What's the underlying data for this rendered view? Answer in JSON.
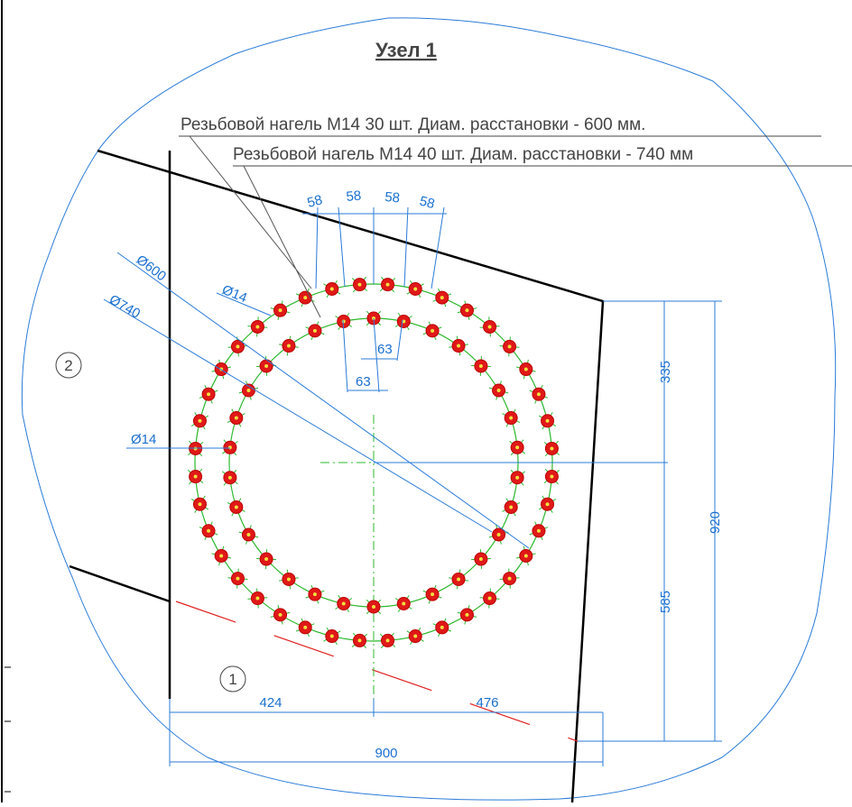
{
  "title": "Узел 1",
  "callouts": [
    "Резьбовой нагель М14 30 шт. Диам. расстановки - 600 мм.",
    "Резьбовой нагель М14 40 шт. Диам. расстановки - 740 мм"
  ],
  "markers": [
    "1",
    "2"
  ],
  "diameters": [
    "Ø600",
    "Ø740",
    "Ø14",
    "Ø14"
  ],
  "spacing_outer": [
    "58",
    "58",
    "58",
    "58"
  ],
  "spacing_inner": [
    "63",
    "63"
  ],
  "vertical_dims": [
    "335",
    "585",
    "920"
  ],
  "horizontal_dims": [
    "424",
    "476",
    "900"
  ]
}
